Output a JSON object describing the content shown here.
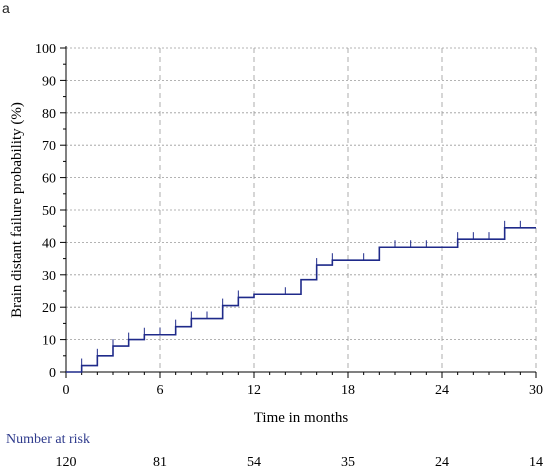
{
  "panel_label": "a",
  "number_at_risk_title": "Number at risk",
  "number_at_risk": [
    {
      "x": 0,
      "n": "120"
    },
    {
      "x": 6,
      "n": "81"
    },
    {
      "x": 12,
      "n": "54"
    },
    {
      "x": 18,
      "n": "35"
    },
    {
      "x": 24,
      "n": "24"
    },
    {
      "x": 30,
      "n": "14"
    }
  ],
  "chart_data": {
    "type": "line",
    "step": true,
    "xlabel": "Time in months",
    "ylabel": "Brain distant failure  probability (%)",
    "xlim": [
      0,
      30
    ],
    "ylim": [
      0,
      100
    ],
    "xticks": [
      0,
      6,
      12,
      18,
      24,
      30
    ],
    "yticks": [
      0,
      10,
      20,
      30,
      40,
      50,
      60,
      70,
      80,
      90,
      100
    ],
    "grid": true,
    "series": [
      {
        "color": "#1f2a8a",
        "steps": [
          [
            0,
            0
          ],
          [
            1,
            2
          ],
          [
            2,
            5
          ],
          [
            3,
            8
          ],
          [
            4,
            10
          ],
          [
            5,
            11.5
          ],
          [
            7,
            14
          ],
          [
            8,
            16.5
          ],
          [
            10,
            20.5
          ],
          [
            11,
            23
          ],
          [
            12,
            24
          ],
          [
            15,
            28.5
          ],
          [
            16,
            33
          ],
          [
            17,
            34.5
          ],
          [
            20,
            38.5
          ],
          [
            25,
            41
          ],
          [
            28,
            44.5
          ],
          [
            30,
            44.5
          ]
        ],
        "censored": [
          [
            1,
            2
          ],
          [
            2,
            5
          ],
          [
            3,
            8
          ],
          [
            4,
            10
          ],
          [
            5,
            11.5
          ],
          [
            6,
            11.5
          ],
          [
            7,
            14
          ],
          [
            8,
            16.5
          ],
          [
            9,
            16.5
          ],
          [
            10,
            20.5
          ],
          [
            11,
            23
          ],
          [
            14,
            24
          ],
          [
            16,
            33
          ],
          [
            17,
            34.5
          ],
          [
            19,
            34.5
          ],
          [
            21,
            38.5
          ],
          [
            22,
            38.5
          ],
          [
            23,
            38.5
          ],
          [
            25,
            41
          ],
          [
            26,
            41
          ],
          [
            27,
            41
          ],
          [
            28,
            44.5
          ],
          [
            29,
            44.5
          ]
        ]
      }
    ]
  }
}
